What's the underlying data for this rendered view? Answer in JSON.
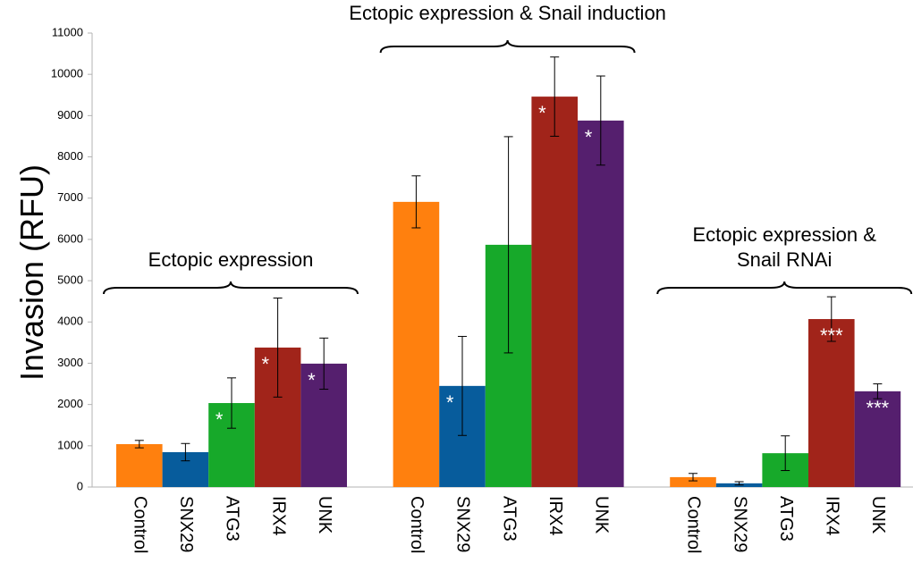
{
  "chart_data": {
    "type": "bar",
    "y_label": "Invasion (RFU)",
    "ylim": [
      0,
      11000
    ],
    "yticks": [
      0,
      1000,
      2000,
      3000,
      4000,
      5000,
      6000,
      7000,
      8000,
      9000,
      10000,
      11000
    ],
    "grid": false,
    "colors": [
      "#ff800e",
      "#075c9c",
      "#17a92a",
      "#a1241a",
      "#551f6e"
    ],
    "groups": [
      {
        "label_lines": [
          "Ectopic expression"
        ],
        "categories": [
          "Control",
          "SNX29",
          "ATG3",
          "IRX4",
          "UNK"
        ],
        "values": [
          1040,
          845,
          2035,
          3380,
          2990
        ],
        "errors": [
          90,
          210,
          610,
          1200,
          620
        ],
        "significance": [
          null,
          null,
          "*",
          "*",
          "*"
        ]
      },
      {
        "label_lines": [
          "Ectopic expression & Snail induction"
        ],
        "categories": [
          "Control",
          "SNX29",
          "ATG3",
          "IRX4",
          "UNK"
        ],
        "values": [
          6910,
          2450,
          5870,
          9460,
          8880
        ],
        "errors": [
          630,
          1200,
          2620,
          960,
          1080
        ],
        "significance": [
          null,
          "*",
          null,
          "*",
          "*"
        ]
      },
      {
        "label_lines": [
          "Ectopic expression &",
          "Snail RNAi"
        ],
        "categories": [
          "Control",
          "SNX29",
          "ATG3",
          "IRX4",
          "UNK"
        ],
        "values": [
          240,
          90,
          820,
          4070,
          2320
        ],
        "errors": [
          90,
          40,
          420,
          540,
          180
        ],
        "significance": [
          null,
          null,
          null,
          "***",
          "***"
        ]
      }
    ]
  }
}
